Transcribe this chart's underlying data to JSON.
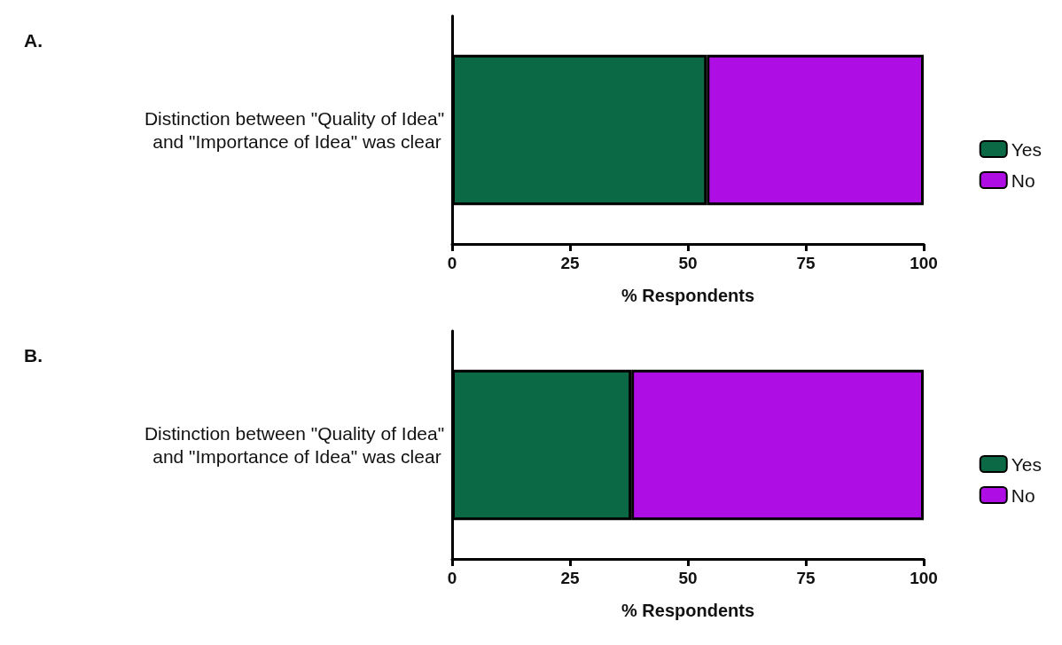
{
  "chart_data": [
    {
      "type": "bar",
      "title": "A.",
      "orientation": "horizontal",
      "stacked": true,
      "categories": [
        "Distinction between \"Quality of Idea\" and \"Importance of Idea\" was clear"
      ],
      "series": [
        {
          "name": "Yes",
          "color": "#0b6a45",
          "values": [
            54
          ]
        },
        {
          "name": "No",
          "color": "#ae0ee3",
          "values": [
            46
          ]
        }
      ],
      "xlabel": "% Respondents",
      "xlim": [
        0,
        100
      ],
      "xticks": [
        0,
        25,
        50,
        75,
        100
      ],
      "grid": false,
      "legend": "right"
    },
    {
      "type": "bar",
      "title": "B.",
      "orientation": "horizontal",
      "stacked": true,
      "categories": [
        "Distinction between \"Quality of Idea\" and \"Importance of Idea\" was clear"
      ],
      "series": [
        {
          "name": "Yes",
          "color": "#0b6a45",
          "values": [
            38
          ]
        },
        {
          "name": "No",
          "color": "#ae0ee3",
          "values": [
            62
          ]
        }
      ],
      "xlabel": "% Respondents",
      "xlim": [
        0,
        100
      ],
      "xticks": [
        0,
        25,
        50,
        75,
        100
      ],
      "grid": false,
      "legend": "right"
    }
  ]
}
